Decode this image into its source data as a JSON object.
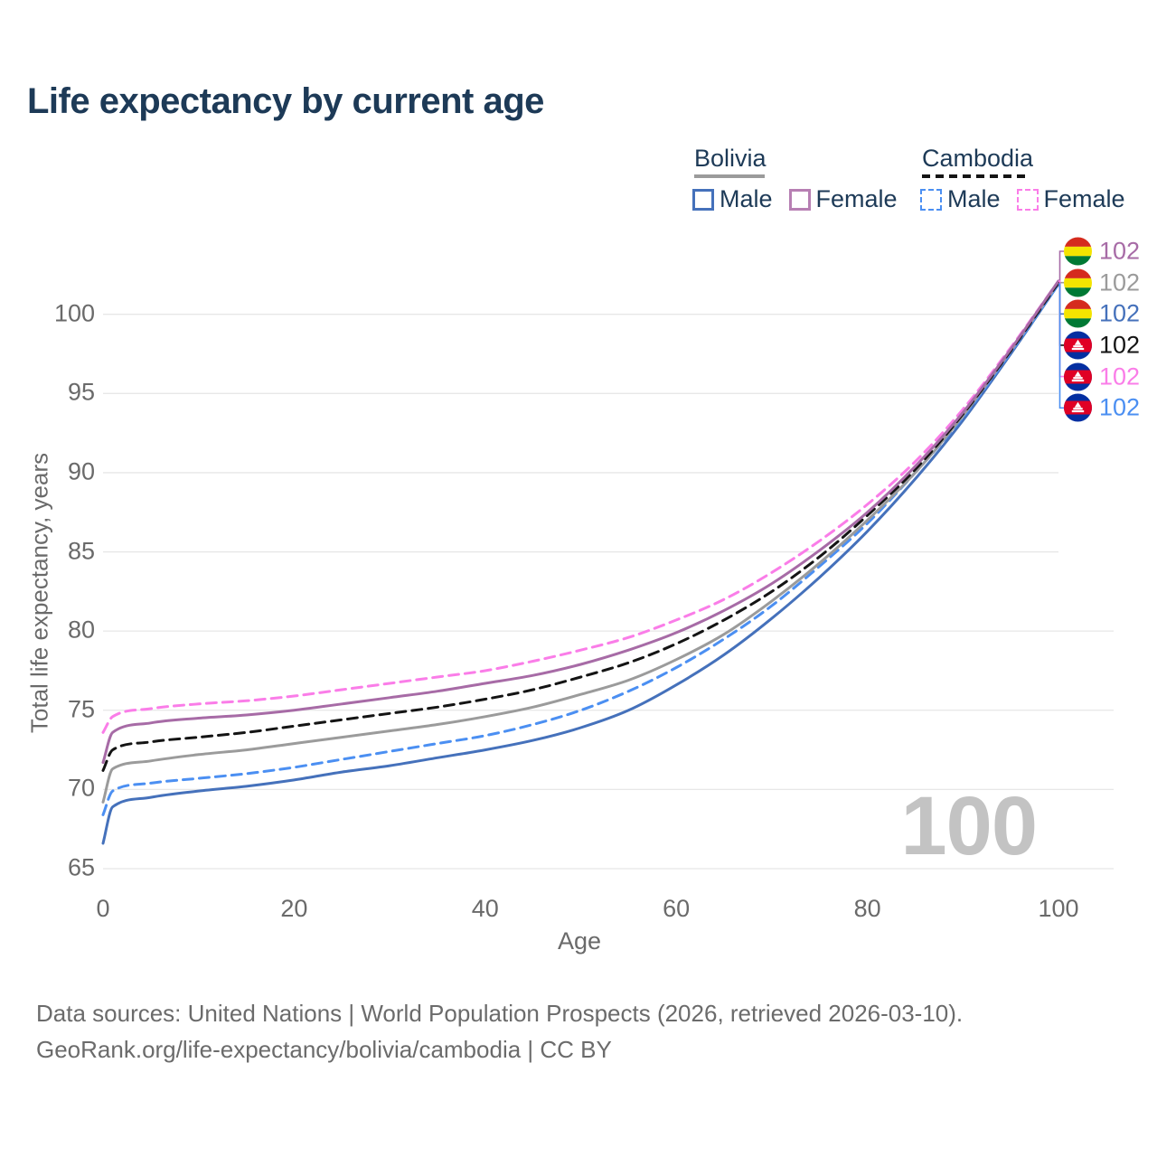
{
  "title": "Life expectancy by current age",
  "legend": {
    "groups": [
      {
        "label": "Bolivia",
        "underline_color": "#9b9b9b",
        "underline_dashed": false,
        "items": [
          {
            "label": "Male",
            "color": "#4571bb",
            "dashed": false
          },
          {
            "label": "Female",
            "color": "#b77fb3",
            "dashed": false
          }
        ]
      },
      {
        "label": "Cambodia",
        "underline_color": "#141414",
        "underline_dashed": true,
        "items": [
          {
            "label": "Male",
            "color": "#4b8ff2",
            "dashed": true
          },
          {
            "label": "Female",
            "color": "#fa7de8",
            "dashed": true
          }
        ]
      }
    ]
  },
  "chart_data": {
    "type": "line",
    "title": "Life expectancy by current age",
    "xlabel": "Age",
    "ylabel": "Total life expectancy, years",
    "xlim": [
      0,
      100
    ],
    "ylim": [
      65,
      103
    ],
    "x_ticks": [
      0,
      20,
      40,
      60,
      80,
      100
    ],
    "y_ticks": [
      65,
      70,
      75,
      80,
      85,
      90,
      95,
      100
    ],
    "grid": "horizontal",
    "x": [
      0,
      1,
      5,
      10,
      15,
      20,
      25,
      30,
      35,
      40,
      45,
      50,
      55,
      60,
      65,
      70,
      75,
      80,
      85,
      90,
      95,
      100
    ],
    "series": [
      {
        "name": "Bolivia Female",
        "country": "bolivia",
        "sex": "female",
        "color": "#a76ba6",
        "dashed": false,
        "label_row": 0,
        "end_label": "102",
        "values": [
          71.7,
          73.6,
          74.2,
          74.5,
          74.7,
          75.0,
          75.4,
          75.8,
          76.2,
          76.7,
          77.2,
          77.9,
          78.8,
          79.9,
          81.3,
          83.0,
          85.1,
          87.5,
          90.4,
          93.8,
          97.8,
          102.1
        ]
      },
      {
        "name": "Bolivia",
        "country": "bolivia",
        "sex": "both",
        "color": "#9b9b9b",
        "dashed": false,
        "label_row": 1,
        "end_label": "102",
        "values": [
          69.2,
          71.3,
          71.8,
          72.2,
          72.5,
          72.9,
          73.3,
          73.7,
          74.1,
          74.6,
          75.2,
          76.0,
          76.9,
          78.2,
          79.8,
          81.9,
          84.3,
          87.0,
          90.0,
          93.6,
          97.7,
          102.0
        ]
      },
      {
        "name": "Bolivia Male",
        "country": "bolivia",
        "sex": "male",
        "color": "#4571bb",
        "dashed": false,
        "label_row": 2,
        "end_label": "102",
        "values": [
          66.6,
          68.9,
          69.5,
          69.9,
          70.2,
          70.6,
          71.1,
          71.5,
          72.0,
          72.5,
          73.1,
          73.9,
          75.0,
          76.6,
          78.5,
          80.8,
          83.4,
          86.3,
          89.6,
          93.3,
          97.5,
          101.9
        ]
      },
      {
        "name": "Cambodia",
        "country": "cambodia",
        "sex": "both",
        "color": "#141414",
        "dashed": true,
        "label_row": 3,
        "end_label": "102",
        "values": [
          71.2,
          72.5,
          73.0,
          73.3,
          73.6,
          74.0,
          74.4,
          74.8,
          75.2,
          75.7,
          76.3,
          77.1,
          78.0,
          79.2,
          80.7,
          82.5,
          84.7,
          87.3,
          90.2,
          93.7,
          97.7,
          102.0
        ]
      },
      {
        "name": "Cambodia Female",
        "country": "cambodia",
        "sex": "female",
        "color": "#fa7de8",
        "dashed": true,
        "label_row": 4,
        "end_label": "102",
        "values": [
          73.6,
          74.6,
          75.1,
          75.4,
          75.6,
          75.9,
          76.3,
          76.7,
          77.1,
          77.5,
          78.1,
          78.8,
          79.6,
          80.7,
          82.0,
          83.7,
          85.7,
          88.0,
          90.7,
          94.0,
          97.9,
          102.1
        ]
      },
      {
        "name": "Cambodia Male",
        "country": "cambodia",
        "sex": "male",
        "color": "#4b8ff2",
        "dashed": true,
        "label_row": 5,
        "end_label": "102",
        "values": [
          68.4,
          69.9,
          70.4,
          70.7,
          71.0,
          71.4,
          71.9,
          72.4,
          72.9,
          73.4,
          74.1,
          75.0,
          76.2,
          77.7,
          79.5,
          81.6,
          84.1,
          86.8,
          90.0,
          93.5,
          97.6,
          101.9
        ]
      }
    ],
    "flags": {
      "bolivia": [
        "#d52b1e",
        "#f4e400",
        "#007934"
      ],
      "cambodia": {
        "blue": "#032ea1",
        "red": "#e00025"
      }
    }
  },
  "annotations": {
    "age_counter": "100",
    "end_labels": [
      {
        "country": "bolivia",
        "series": "Bolivia Female",
        "value": "102",
        "color": "#a76ba6"
      },
      {
        "country": "bolivia",
        "series": "Bolivia",
        "value": "102",
        "color": "#9b9b9b"
      },
      {
        "country": "bolivia",
        "series": "Bolivia Male",
        "value": "102",
        "color": "#4571bb"
      },
      {
        "country": "cambodia",
        "series": "Cambodia",
        "value": "102",
        "color": "#141414"
      },
      {
        "country": "cambodia",
        "series": "Cambodia Female",
        "value": "102",
        "color": "#fa7de8"
      },
      {
        "country": "cambodia",
        "series": "Cambodia Male",
        "value": "102",
        "color": "#4b8ff2"
      }
    ]
  },
  "footer": {
    "line1": "Data sources: United Nations | World Population Prospects (2026, retrieved 2026-03-10).",
    "line2": "GeoRank.org/life-expectancy/bolivia/cambodia | CC BY"
  }
}
